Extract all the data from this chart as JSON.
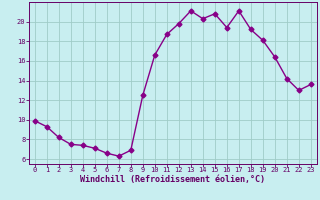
{
  "x": [
    0,
    1,
    2,
    3,
    4,
    5,
    6,
    7,
    8,
    9,
    10,
    11,
    12,
    13,
    14,
    15,
    16,
    17,
    18,
    19,
    20,
    21,
    22,
    23
  ],
  "y": [
    9.9,
    9.3,
    8.2,
    7.5,
    7.4,
    7.1,
    6.6,
    6.3,
    6.9,
    12.5,
    16.6,
    18.7,
    19.8,
    21.1,
    20.3,
    20.8,
    19.4,
    21.1,
    19.2,
    18.1,
    16.4,
    14.2,
    13.0,
    13.6
  ],
  "line_color": "#880088",
  "marker": "D",
  "markersize": 2.5,
  "linewidth": 1.0,
  "bg_color": "#c8eef0",
  "grid_color": "#a0ccc8",
  "xlabel": "Windchill (Refroidissement éolien,°C)",
  "xlim": [
    -0.5,
    23.5
  ],
  "ylim": [
    5.5,
    22.0
  ],
  "yticks": [
    6,
    8,
    10,
    12,
    14,
    16,
    18,
    20
  ],
  "xticks": [
    0,
    1,
    2,
    3,
    4,
    5,
    6,
    7,
    8,
    9,
    10,
    11,
    12,
    13,
    14,
    15,
    16,
    17,
    18,
    19,
    20,
    21,
    22,
    23
  ],
  "tick_color": "#660066",
  "label_color": "#660066",
  "label_fontsize": 6.0,
  "tick_fontsize": 5.0,
  "spine_color": "#660066"
}
